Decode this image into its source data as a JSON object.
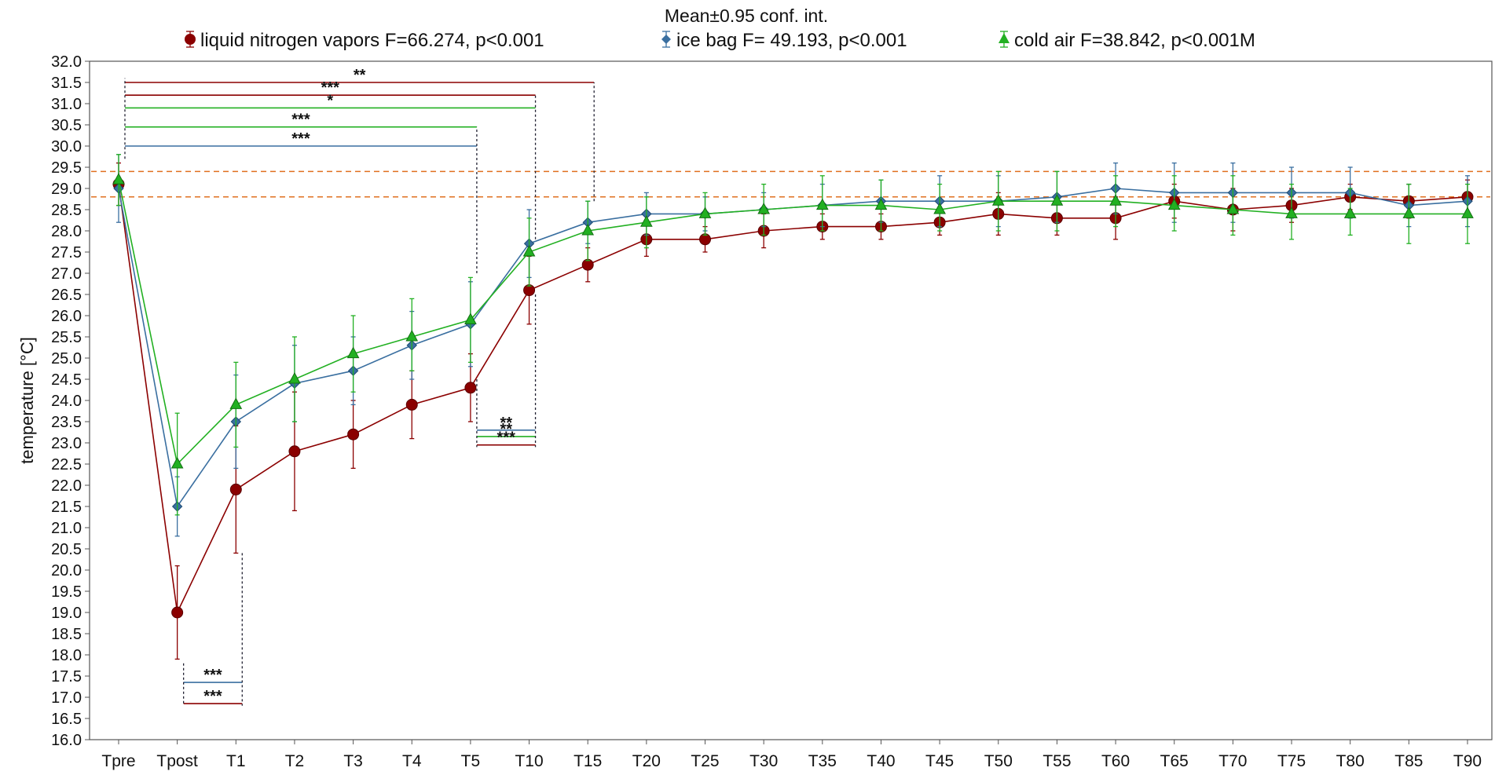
{
  "chart_data": {
    "type": "line",
    "title": "Mean±0.95 conf. int.",
    "ylabel": "temperature [°C]",
    "xlabel": "",
    "ylim": [
      16.0,
      32.0
    ],
    "yticks": [
      "16.0",
      "16.5",
      "17.0",
      "17.5",
      "18.0",
      "18.5",
      "19.0",
      "19.5",
      "20.0",
      "20.5",
      "21.0",
      "21.5",
      "22.0",
      "22.5",
      "23.0",
      "23.5",
      "24.0",
      "24.5",
      "25.0",
      "25.5",
      "26.0",
      "26.5",
      "27.0",
      "27.5",
      "28.0",
      "28.5",
      "29.0",
      "29.5",
      "30.0",
      "30.5",
      "31.0",
      "31.5",
      "32.0"
    ],
    "categories": [
      "Tpre",
      "Tpost",
      "T1",
      "T2",
      "T3",
      "T4",
      "T5",
      "T10",
      "T15",
      "T20",
      "T25",
      "T30",
      "T35",
      "T40",
      "T45",
      "T50",
      "T55",
      "T60",
      "T65",
      "T70",
      "T75",
      "T80",
      "T85",
      "T90"
    ],
    "grid": false,
    "legend_position": "top",
    "series": [
      {
        "name": "liquid nitrogen vapors F=66.274, p<0.001",
        "color": "#8b0000",
        "marker": "circle",
        "values": [
          29.1,
          19.0,
          21.9,
          22.8,
          23.2,
          23.9,
          24.3,
          26.6,
          27.2,
          27.8,
          27.8,
          28.0,
          28.1,
          28.1,
          28.2,
          28.4,
          28.3,
          28.3,
          28.7,
          28.5,
          28.6,
          28.8,
          28.7,
          28.8
        ],
        "ci_low": [
          28.6,
          17.9,
          20.4,
          21.4,
          22.4,
          23.1,
          23.5,
          25.8,
          26.8,
          27.4,
          27.5,
          27.6,
          27.8,
          27.8,
          27.9,
          27.9,
          27.9,
          27.8,
          28.3,
          28.0,
          28.2,
          28.5,
          28.3,
          28.4
        ],
        "ci_high": [
          29.6,
          20.1,
          23.4,
          24.2,
          24.0,
          24.7,
          25.1,
          27.4,
          27.6,
          28.2,
          28.1,
          28.4,
          28.4,
          28.4,
          28.5,
          28.9,
          28.7,
          28.8,
          29.1,
          29.0,
          29.0,
          29.1,
          29.1,
          29.2
        ]
      },
      {
        "name": "ice bag F= 49.193, p<0.001",
        "color": "#3a6fa0",
        "marker": "diamond",
        "values": [
          29.0,
          21.5,
          23.5,
          24.4,
          24.7,
          25.3,
          25.8,
          27.7,
          28.2,
          28.4,
          28.4,
          28.5,
          28.6,
          28.7,
          28.7,
          28.7,
          28.8,
          29.0,
          28.9,
          28.9,
          28.9,
          28.9,
          28.6,
          28.7
        ],
        "ci_low": [
          28.2,
          20.8,
          22.4,
          23.5,
          23.9,
          24.5,
          24.8,
          26.9,
          27.7,
          27.9,
          28.0,
          28.1,
          28.1,
          28.2,
          28.1,
          28.1,
          28.2,
          28.4,
          28.2,
          28.2,
          28.3,
          28.3,
          28.1,
          28.1
        ],
        "ci_high": [
          29.8,
          22.2,
          24.6,
          25.3,
          25.5,
          26.1,
          26.8,
          28.5,
          28.7,
          28.9,
          28.8,
          28.9,
          29.1,
          29.2,
          29.3,
          29.3,
          29.4,
          29.6,
          29.6,
          29.6,
          29.5,
          29.5,
          29.1,
          29.3
        ]
      },
      {
        "name": "cold air  F=38.842, p<0.001M",
        "color": "#22b022",
        "marker": "triangle",
        "values": [
          29.2,
          22.5,
          23.9,
          24.5,
          25.1,
          25.5,
          25.9,
          27.5,
          28.0,
          28.2,
          28.4,
          28.5,
          28.6,
          28.6,
          28.5,
          28.7,
          28.7,
          28.7,
          28.6,
          28.5,
          28.4,
          28.4,
          28.4,
          28.4
        ],
        "ci_low": [
          28.6,
          21.3,
          22.9,
          23.5,
          24.2,
          24.7,
          24.9,
          26.7,
          27.3,
          27.6,
          27.9,
          27.9,
          28.0,
          28.0,
          28.0,
          28.0,
          28.0,
          28.1,
          28.0,
          27.9,
          27.8,
          27.9,
          27.7,
          27.7
        ],
        "ci_high": [
          29.8,
          23.7,
          24.9,
          25.5,
          26.0,
          26.4,
          26.9,
          28.3,
          28.7,
          28.8,
          28.9,
          29.1,
          29.3,
          29.2,
          29.1,
          29.4,
          29.4,
          29.3,
          29.3,
          29.3,
          29.1,
          29.0,
          29.1,
          29.1
        ]
      }
    ],
    "reference_band": {
      "y_low": 28.8,
      "y_high": 29.4,
      "color": "#e07020"
    },
    "significance": [
      {
        "label": "**",
        "from": "Tpre",
        "to": "T15",
        "y": 31.5,
        "color": "#8b0000"
      },
      {
        "label": "***",
        "from": "Tpre",
        "to": "T10",
        "y": 31.2,
        "color": "#8b0000"
      },
      {
        "label": "*",
        "from": "Tpre",
        "to": "T10",
        "y": 30.9,
        "color": "#22b022"
      },
      {
        "label": "***",
        "from": "Tpre",
        "to": "T5",
        "y": 30.45,
        "color": "#22b022"
      },
      {
        "label": "***",
        "from": "Tpre",
        "to": "T5",
        "y": 30.0,
        "color": "#3a6fa0"
      },
      {
        "label": "***",
        "from": "Tpost",
        "to": "T1",
        "y": 17.35,
        "color": "#3a6fa0"
      },
      {
        "label": "***",
        "from": "Tpost",
        "to": "T1",
        "y": 16.85,
        "color": "#8b0000"
      },
      {
        "label": "**",
        "from": "T5",
        "to": "T10",
        "y": 23.3,
        "color": "#3a6fa0"
      },
      {
        "label": "**",
        "from": "T5",
        "to": "T10",
        "y": 23.15,
        "color": "#22b022"
      },
      {
        "label": "***",
        "from": "T5",
        "to": "T10",
        "y": 22.95,
        "color": "#8b0000"
      }
    ]
  }
}
